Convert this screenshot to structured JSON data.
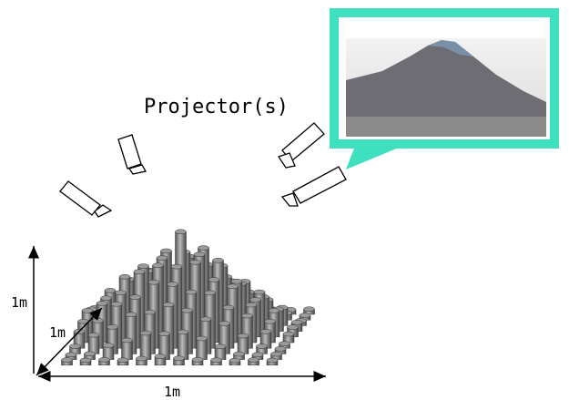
{
  "projector_label": "Projector(s)",
  "height_label": "1m",
  "depth_label": "1m",
  "width_label": "1m"
}
